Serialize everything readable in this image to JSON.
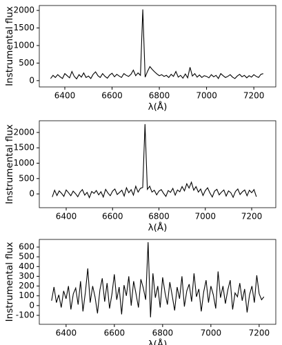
{
  "chart_data": [
    {
      "type": "line",
      "xlabel": "λ(Å)",
      "ylabel": "Instrumental flux",
      "x": [
        6340,
        6350,
        6360,
        6370,
        6380,
        6390,
        6400,
        6410,
        6420,
        6430,
        6440,
        6450,
        6460,
        6470,
        6480,
        6490,
        6500,
        6510,
        6520,
        6530,
        6540,
        6550,
        6560,
        6570,
        6580,
        6590,
        6600,
        6610,
        6620,
        6630,
        6640,
        6650,
        6660,
        6670,
        6680,
        6690,
        6700,
        6710,
        6720,
        6730,
        6740,
        6750,
        6760,
        6770,
        6780,
        6790,
        6800,
        6810,
        6820,
        6830,
        6840,
        6850,
        6860,
        6870,
        6880,
        6890,
        6900,
        6910,
        6920,
        6930,
        6940,
        6950,
        6960,
        6970,
        6980,
        6990,
        7000,
        7010,
        7020,
        7030,
        7040,
        7050,
        7060,
        7070,
        7080,
        7090,
        7100,
        7110,
        7120,
        7130,
        7140,
        7150,
        7160,
        7170,
        7180,
        7190,
        7200,
        7210,
        7220,
        7230,
        7240
      ],
      "values": [
        60,
        150,
        90,
        170,
        110,
        60,
        200,
        140,
        80,
        260,
        120,
        50,
        170,
        100,
        220,
        90,
        130,
        60,
        180,
        250,
        140,
        90,
        200,
        120,
        70,
        160,
        210,
        110,
        180,
        130,
        90,
        200,
        150,
        120,
        180,
        300,
        140,
        220,
        150,
        2030,
        100,
        260,
        400,
        320,
        250,
        190,
        140,
        170,
        120,
        150,
        90,
        180,
        120,
        260,
        100,
        150,
        70,
        190,
        80,
        380,
        130,
        200,
        100,
        160,
        90,
        140,
        120,
        80,
        170,
        110,
        150,
        60,
        200,
        140,
        90,
        120,
        170,
        100,
        60,
        130,
        180,
        110,
        150,
        80,
        140,
        100,
        170,
        120,
        90,
        180,
        200
      ],
      "color": "#000000",
      "xlim": [
        6292,
        7293
      ],
      "ylim": [
        -180,
        2140
      ],
      "xticks": [
        6400,
        6600,
        6800,
        7000,
        7200
      ],
      "yticks": [
        0,
        500,
        1000,
        1500,
        2000
      ]
    },
    {
      "type": "line",
      "xlabel": "λ(Å)",
      "ylabel": "Instrumental flux",
      "x": [
        6340,
        6350,
        6360,
        6370,
        6380,
        6390,
        6400,
        6410,
        6420,
        6430,
        6440,
        6450,
        6460,
        6470,
        6480,
        6490,
        6500,
        6510,
        6520,
        6530,
        6540,
        6550,
        6560,
        6570,
        6580,
        6590,
        6600,
        6610,
        6620,
        6630,
        6640,
        6650,
        6660,
        6670,
        6680,
        6690,
        6700,
        6710,
        6720,
        6730,
        6740,
        6750,
        6760,
        6770,
        6780,
        6790,
        6800,
        6810,
        6820,
        6830,
        6840,
        6850,
        6860,
        6870,
        6880,
        6890,
        6900,
        6910,
        6920,
        6930,
        6940,
        6950,
        6960,
        6970,
        6980,
        6990,
        7000,
        7010,
        7020,
        7030,
        7040,
        7050,
        7060,
        7070,
        7080,
        7090,
        7100,
        7110,
        7120,
        7130,
        7140,
        7150,
        7160,
        7170,
        7180,
        7190,
        7200,
        7210,
        7220
      ],
      "values": [
        -100,
        120,
        -50,
        100,
        20,
        -80,
        130,
        40,
        -60,
        90,
        10,
        -90,
        60,
        140,
        -40,
        50,
        -120,
        80,
        20,
        110,
        -30,
        70,
        -100,
        150,
        30,
        -60,
        90,
        160,
        -20,
        50,
        120,
        -70,
        200,
        40,
        140,
        -40,
        250,
        60,
        180,
        210,
        2270,
        150,
        250,
        60,
        120,
        -30,
        90,
        140,
        20,
        -80,
        110,
        50,
        180,
        -40,
        130,
        70,
        240,
        100,
        330,
        190,
        380,
        120,
        240,
        60,
        160,
        -50,
        110,
        200,
        30,
        -100,
        90,
        150,
        -30,
        60,
        130,
        -70,
        100,
        40,
        -110,
        80,
        160,
        -20,
        70,
        130,
        -60,
        120,
        40,
        140,
        -90
      ],
      "color": "#000000",
      "xlim": [
        6284,
        7304
      ],
      "ylim": [
        -448,
        2381
      ],
      "xticks": [
        6400,
        6600,
        6800,
        7000,
        7200
      ],
      "yticks": [
        0,
        500,
        1000,
        1500,
        2000
      ]
    },
    {
      "type": "line",
      "xlabel": "λ(Å)",
      "ylabel": "Instrumental flux",
      "x": [
        6340,
        6350,
        6360,
        6370,
        6380,
        6390,
        6400,
        6410,
        6420,
        6430,
        6440,
        6450,
        6460,
        6470,
        6480,
        6490,
        6500,
        6510,
        6520,
        6530,
        6540,
        6550,
        6560,
        6570,
        6580,
        6590,
        6600,
        6610,
        6620,
        6630,
        6640,
        6650,
        6660,
        6670,
        6680,
        6690,
        6700,
        6710,
        6720,
        6730,
        6740,
        6750,
        6760,
        6770,
        6780,
        6790,
        6800,
        6810,
        6820,
        6830,
        6840,
        6850,
        6860,
        6870,
        6880,
        6890,
        6900,
        6910,
        6920,
        6930,
        6940,
        6950,
        6960,
        6970,
        6980,
        6990,
        7000,
        7010,
        7020,
        7030,
        7040,
        7050,
        7060,
        7070,
        7080,
        7090,
        7100,
        7110,
        7120,
        7130,
        7140,
        7150,
        7160,
        7170,
        7180,
        7190,
        7200,
        7210,
        7220
      ],
      "values": [
        50,
        190,
        30,
        110,
        -20,
        150,
        70,
        200,
        -40,
        120,
        180,
        10,
        250,
        -60,
        140,
        380,
        30,
        200,
        90,
        -80,
        160,
        280,
        40,
        230,
        -30,
        120,
        320,
        60,
        190,
        -90,
        210,
        100,
        300,
        0,
        250,
        120,
        -20,
        270,
        180,
        60,
        650,
        -120,
        330,
        80,
        200,
        -20,
        290,
        130,
        10,
        240,
        100,
        -50,
        190,
        70,
        300,
        -10,
        150,
        220,
        40,
        330,
        90,
        170,
        -60,
        140,
        260,
        30,
        200,
        110,
        -30,
        350,
        80,
        200,
        20,
        160,
        260,
        -40,
        130,
        90,
        230,
        50,
        170,
        -70,
        110,
        200,
        30,
        310,
        120,
        60,
        90
      ],
      "color": "#000000",
      "xlim": [
        6289,
        7269
      ],
      "ylim": [
        -192,
        678
      ],
      "xticks": [
        6400,
        6600,
        6800,
        7000,
        7200
      ],
      "yticks": [
        -100,
        0,
        100,
        200,
        300,
        400,
        500,
        600
      ]
    }
  ]
}
